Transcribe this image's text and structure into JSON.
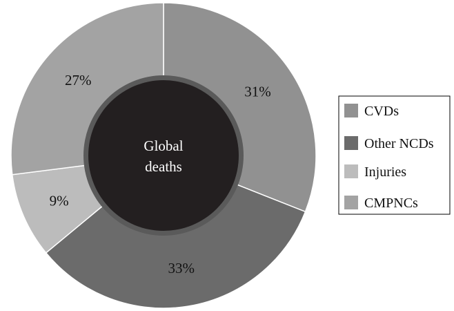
{
  "chart_data": {
    "type": "pie",
    "style": "donut",
    "center_label": [
      "Global",
      "deaths"
    ],
    "slices": [
      {
        "name": "CVDs",
        "value": 31,
        "label": "31%",
        "color": "#919191"
      },
      {
        "name": "Other NCDs",
        "value": 33,
        "label": "33%",
        "color": "#6b6b6b"
      },
      {
        "name": "Injuries",
        "value": 9,
        "label": "9%",
        "color": "#bcbcbc"
      },
      {
        "name": "CMPNCs",
        "value": 27,
        "label": "27%",
        "color": "#a3a3a3"
      }
    ],
    "start_angle_deg": 0,
    "direction": "clockwise",
    "center_color": "#231f20",
    "ring_border_color": "#5a5a5a",
    "legend": {
      "placement": "right",
      "items": [
        "CVDs",
        "Other NCDs",
        "Injuries",
        "CMPNCs"
      ]
    }
  }
}
